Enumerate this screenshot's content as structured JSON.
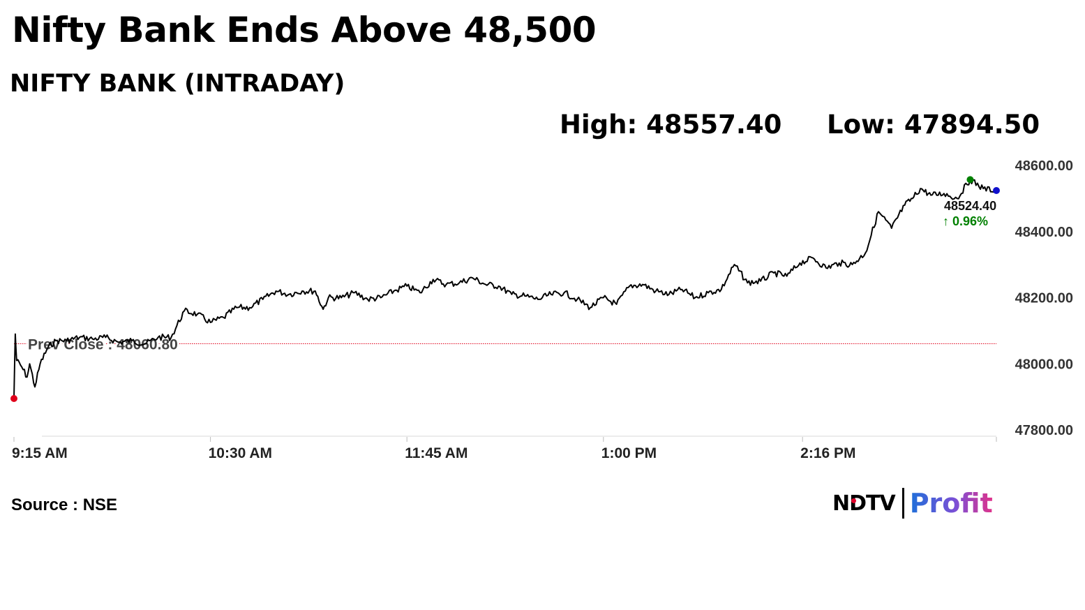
{
  "headline": "Nifty Bank Ends Above 48,500",
  "subtitle": "NIFTY BANK (INTRADAY)",
  "stats": {
    "high": "High: 48557.40",
    "low": "Low: 47894.50"
  },
  "source": "Source : NSE",
  "logo": {
    "ndtv": "NDTV",
    "profit": "Profit"
  },
  "colors": {
    "line": "#000000",
    "prev_close": "#e0001b",
    "up": "#008000",
    "low_dot": "#e0001b",
    "high_dot": "#008000",
    "last_dot": "#1010cc",
    "profit_start": "#1e6fd9",
    "profit_end": "#e0338a"
  },
  "chart_data": {
    "type": "line",
    "title": "NIFTY BANK (INTRADAY)",
    "xlabel": "",
    "ylabel": "",
    "x_ticks": [
      "9:15 AM",
      "10:30 AM",
      "11:45 AM",
      "1:00 PM",
      "2:16 PM"
    ],
    "y_ticks": [
      "48600.00",
      "48400.00",
      "48200.00",
      "48000.00",
      "47800.00"
    ],
    "ylim": [
      47800,
      48600
    ],
    "xlim_minutes": [
      0,
      375
    ],
    "prev_close": 48060.8,
    "prev_close_label": "Prev Close : 48060.80",
    "last_value": "48524.40",
    "last_change": "↑ 0.96%",
    "high": 48557.4,
    "low": 47894.5,
    "series": [
      {
        "x_minutes": [
          0,
          0.5,
          1,
          3,
          5,
          6,
          8,
          10,
          13,
          16,
          20,
          25,
          30,
          35,
          40,
          45,
          50,
          55,
          60,
          65,
          70,
          75,
          80,
          85,
          90,
          95,
          100,
          105,
          110,
          115,
          118,
          120,
          125,
          130,
          135,
          140,
          145,
          150,
          155,
          160,
          165,
          170,
          175,
          180,
          185,
          190,
          195,
          200,
          205,
          210,
          215,
          220,
          225,
          230,
          235,
          240,
          245,
          250,
          255,
          260,
          265,
          270,
          275,
          280,
          285,
          290,
          295,
          300,
          305,
          310,
          315,
          320,
          325,
          330,
          335,
          340,
          343,
          346,
          350,
          355,
          360,
          365,
          370,
          375
        ],
        "values": [
          47895,
          48090,
          48010,
          47990,
          47960,
          48000,
          47930,
          48000,
          48050,
          48070,
          48070,
          48080,
          48075,
          48080,
          48065,
          48070,
          48060,
          48080,
          48080,
          48160,
          48150,
          48125,
          48140,
          48170,
          48170,
          48195,
          48220,
          48210,
          48220,
          48220,
          48165,
          48200,
          48200,
          48215,
          48195,
          48200,
          48220,
          48235,
          48215,
          48255,
          48240,
          48245,
          48260,
          48240,
          48235,
          48210,
          48205,
          48195,
          48210,
          48215,
          48195,
          48170,
          48200,
          48180,
          48235,
          48240,
          48220,
          48210,
          48225,
          48200,
          48215,
          48225,
          48300,
          48245,
          48250,
          48275,
          48265,
          48305,
          48320,
          48290,
          48305,
          48300,
          48335,
          48460,
          48410,
          48480,
          48500,
          48530,
          48510,
          48515,
          48500,
          48557,
          48530,
          48524
        ]
      }
    ]
  }
}
